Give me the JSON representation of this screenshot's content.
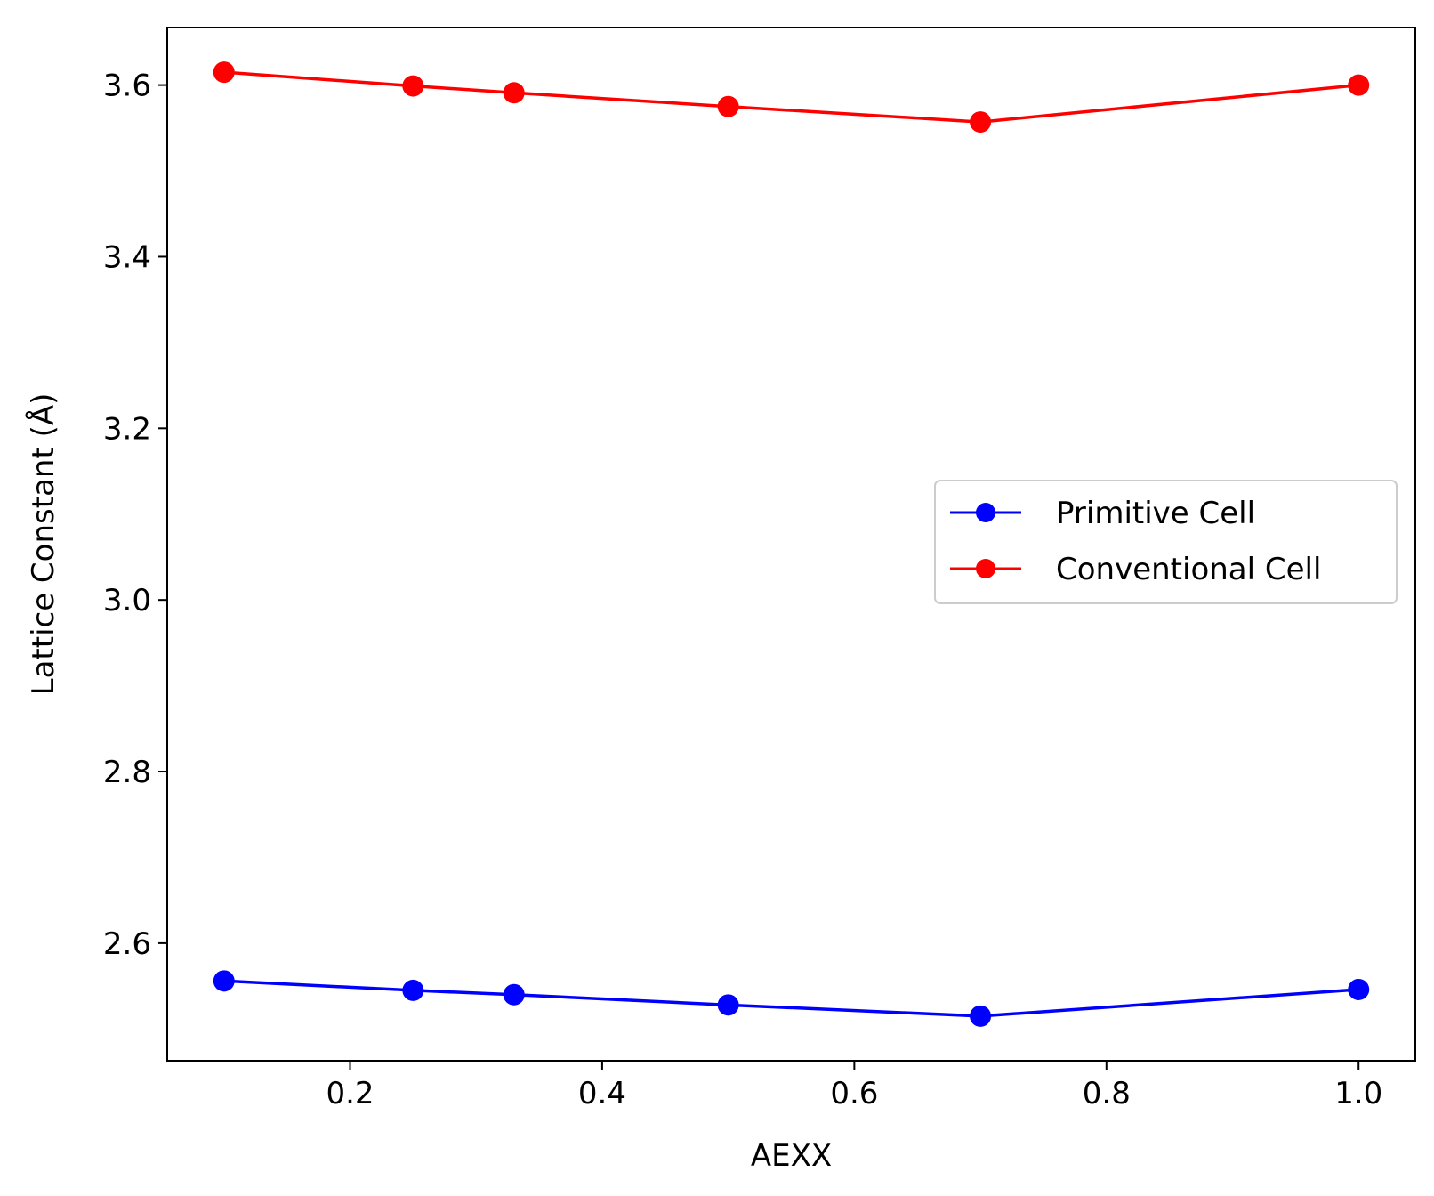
{
  "chart_data": {
    "type": "line",
    "xlabel": "AEXX",
    "ylabel": "Lattice Constant (Å)",
    "xlim": [
      0.055,
      1.045
    ],
    "ylim": [
      2.463,
      3.667
    ],
    "xticks": [
      0.2,
      0.4,
      0.6,
      0.8,
      1.0
    ],
    "xtick_labels": [
      "0.2",
      "0.4",
      "0.6",
      "0.8",
      "1.0"
    ],
    "yticks": [
      2.6,
      2.8,
      3.0,
      3.2,
      3.4,
      3.6
    ],
    "ytick_labels": [
      "2.6",
      "2.8",
      "3.0",
      "3.2",
      "3.4",
      "3.6"
    ],
    "grid": false,
    "legend_position": "center-right",
    "x": [
      0.1,
      0.25,
      0.33,
      0.5,
      0.7,
      1.0
    ],
    "series": [
      {
        "name": "Primitive Cell",
        "color": "#0000ff",
        "marker": "circle",
        "values": [
          2.556,
          2.545,
          2.54,
          2.528,
          2.515,
          2.546
        ]
      },
      {
        "name": "Conventional Cell",
        "color": "#ff0000",
        "marker": "circle",
        "values": [
          3.615,
          3.599,
          3.591,
          3.575,
          3.557,
          3.6
        ]
      }
    ]
  }
}
